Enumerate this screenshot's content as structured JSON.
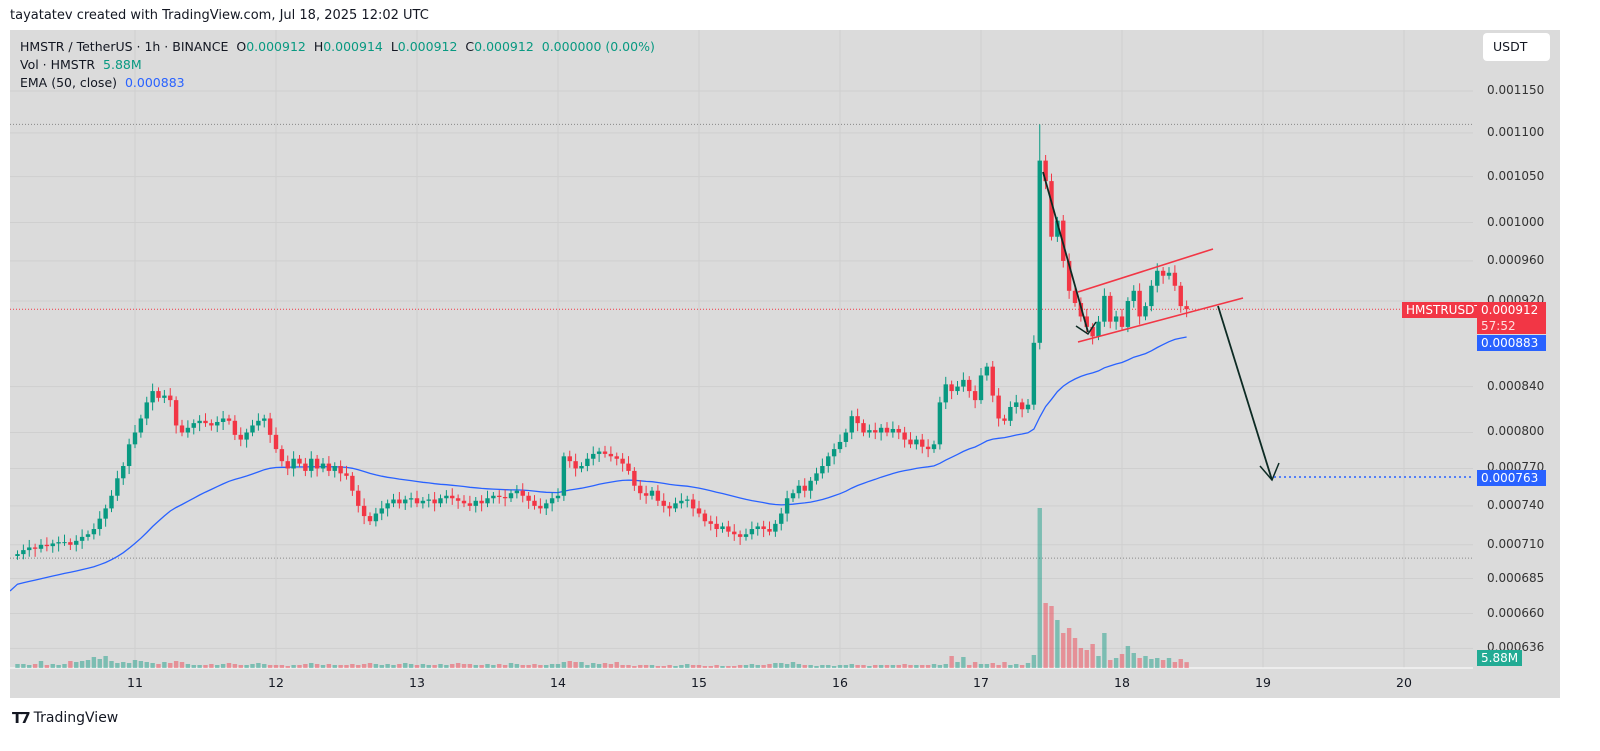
{
  "credit": "tayatatev created with TradingView.com, Jul 18, 2025 12:02 UTC",
  "legend": {
    "symbol": "HMSTR / TetherUS · 1h · BINANCE",
    "o_label": "O",
    "o": "0.000912",
    "h_label": "H",
    "h": "0.000914",
    "l_label": "L",
    "l": "0.000912",
    "c_label": "C",
    "c": "0.000912",
    "change": "0.000000 (0.00%)",
    "vol_label": "Vol · HMSTR",
    "vol": "5.88M",
    "ema_label": "EMA (50, close)",
    "ema": "0.000883"
  },
  "currency_button": "USDT",
  "tags": {
    "symbol": "HMSTRUSDT",
    "price": "0.000912",
    "countdown": "57:52",
    "ema": "0.000883",
    "target": "0.000763",
    "volume": "5.88M"
  },
  "footer_logo": "TradingView",
  "colors": {
    "up": "#089981",
    "down": "#f23645",
    "ema": "#2962ff",
    "channel": "#f23645",
    "arrow": "#0d2b24",
    "target": "#2962ff"
  },
  "chart_data": {
    "type": "candlestick",
    "interval": "1h",
    "yscale": "log",
    "ylim": [
      0.00063,
      0.00118
    ],
    "y_ticks": [
      "0.001150",
      "0.001100",
      "0.001050",
      "0.001000",
      "0.000960",
      "0.000920",
      "0.000840",
      "0.000800",
      "0.000770",
      "0.000740",
      "0.000710",
      "0.000685",
      "0.000660",
      "0.000636"
    ],
    "x_ticks": [
      "11",
      "12",
      "13",
      "14",
      "15",
      "16",
      "17",
      "18",
      "19",
      "20"
    ],
    "high_line": 0.00111,
    "low_line": 0.0007,
    "target_price": 0.000763,
    "closes": [
      0.000703,
      0.000706,
      0.000708,
      0.000707,
      0.00071,
      0.000709,
      0.000711,
      0.000712,
      0.000712,
      0.00071,
      0.000713,
      0.000716,
      0.000718,
      0.000722,
      0.00073,
      0.000738,
      0.000748,
      0.000762,
      0.000772,
      0.00079,
      0.0008,
      0.000812,
      0.000826,
      0.000836,
      0.00083,
      0.000832,
      0.000828,
      0.000806,
      0.0008,
      0.000804,
      0.000808,
      0.00081,
      0.000808,
      0.000806,
      0.000809,
      0.000812,
      0.00081,
      0.000798,
      0.000794,
      0.0008,
      0.000806,
      0.00081,
      0.000812,
      0.000798,
      0.000786,
      0.000776,
      0.00077,
      0.000778,
      0.000774,
      0.000768,
      0.000778,
      0.00077,
      0.000774,
      0.000768,
      0.000772,
      0.000766,
      0.000764,
      0.000752,
      0.00074,
      0.000732,
      0.000728,
      0.000734,
      0.000738,
      0.000742,
      0.000745,
      0.000742,
      0.000745,
      0.000746,
      0.000742,
      0.000744,
      0.000745,
      0.000742,
      0.000746,
      0.000748,
      0.000746,
      0.000744,
      0.000742,
      0.00074,
      0.000744,
      0.000742,
      0.000746,
      0.000748,
      0.000747,
      0.000746,
      0.00075,
      0.000752,
      0.000748,
      0.000744,
      0.00074,
      0.000738,
      0.000742,
      0.000746,
      0.000748,
      0.00078,
      0.000776,
      0.00077,
      0.000772,
      0.000778,
      0.000782,
      0.000784,
      0.000782,
      0.00078,
      0.000778,
      0.000774,
      0.000768,
      0.000756,
      0.00075,
      0.000748,
      0.000752,
      0.000744,
      0.00074,
      0.000738,
      0.000742,
      0.000744,
      0.000745,
      0.000738,
      0.000734,
      0.000728,
      0.000726,
      0.000722,
      0.000724,
      0.00072,
      0.000718,
      0.000716,
      0.000718,
      0.000722,
      0.000724,
      0.000722,
      0.00072,
      0.000726,
      0.000734,
      0.000746,
      0.00075,
      0.000756,
      0.000752,
      0.00076,
      0.000766,
      0.000772,
      0.00078,
      0.000786,
      0.000792,
      0.0008,
      0.000814,
      0.000808,
      0.0008,
      0.000802,
      0.0008,
      0.000804,
      0.0008,
      0.000803,
      0.0008,
      0.000794,
      0.00079,
      0.000794,
      0.000788,
      0.000786,
      0.00079,
      0.000826,
      0.000842,
      0.000836,
      0.00084,
      0.000846,
      0.000836,
      0.000828,
      0.00085,
      0.000858,
      0.000832,
      0.000812,
      0.00081,
      0.000822,
      0.000826,
      0.00082,
      0.000824,
      0.00088,
      0.001068,
      0.001045,
      0.000985,
      0.001002,
      0.00096,
      0.00093,
      0.000918,
      0.000905,
      0.000895,
      0.000886,
      0.0009,
      0.000925,
      0.0009,
      0.000905,
      0.000895,
      0.00092,
      0.00093,
      0.000905,
      0.000915,
      0.000935,
      0.00095,
      0.000945,
      0.000948,
      0.000935,
      0.000915,
      0.000912
    ],
    "volumes_millions": [
      4,
      4,
      3,
      4,
      7,
      3,
      4,
      3,
      4,
      7,
      6,
      7,
      8,
      11,
      9,
      12,
      7,
      5,
      6,
      5,
      8,
      7,
      6,
      5,
      4,
      6,
      5,
      7,
      6,
      4,
      3,
      3,
      3,
      4,
      3,
      4,
      5,
      4,
      3,
      3,
      4,
      5,
      4,
      3,
      3,
      3,
      2,
      3,
      3,
      4,
      5,
      4,
      3,
      4,
      3,
      3,
      3,
      4,
      3,
      4,
      5,
      4,
      3,
      4,
      3,
      4,
      5,
      4,
      3,
      4,
      3,
      3,
      4,
      3,
      4,
      5,
      4,
      4,
      3,
      3,
      4,
      3,
      4,
      3,
      5,
      4,
      3,
      3,
      4,
      3,
      3,
      4,
      4,
      6,
      7,
      6,
      6,
      3,
      5,
      4,
      5,
      4,
      6,
      3,
      3,
      2,
      3,
      3,
      3,
      2,
      2,
      3,
      2,
      3,
      4,
      3,
      3,
      2,
      2,
      3,
      2,
      2,
      2,
      3,
      3,
      4,
      3,
      3,
      4,
      5,
      5,
      4,
      6,
      4,
      3,
      3,
      2,
      3,
      3,
      2,
      3,
      3,
      4,
      3,
      3,
      2,
      3,
      3,
      3,
      3,
      3,
      4,
      3,
      3,
      3,
      3,
      4,
      3,
      4,
      12,
      6,
      11,
      3,
      6,
      4,
      4,
      5,
      3,
      6,
      3,
      4,
      3,
      5,
      13,
      160,
      65,
      62,
      48,
      35,
      40,
      30,
      20,
      18,
      24,
      12,
      35,
      8,
      10,
      14,
      22,
      15,
      10,
      12,
      9,
      10,
      8,
      10,
      6,
      9,
      5.88
    ]
  }
}
